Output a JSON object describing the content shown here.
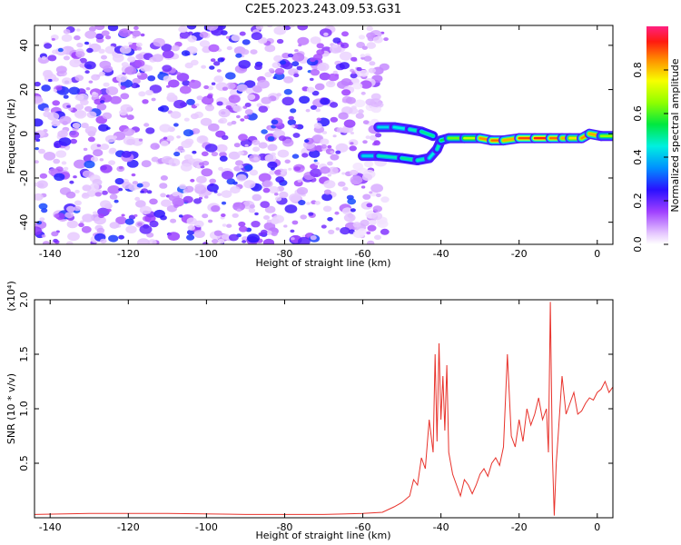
{
  "figure_title": "C2E5.2023.243.09.53.G31",
  "chart_data": [
    {
      "type": "heatmap",
      "title": "C2E5.2023.243.09.53.G31",
      "xlabel": "Height of straight line (km)",
      "ylabel": "Frequency (Hz)",
      "xlim": [
        -144,
        4
      ],
      "ylim": [
        -50,
        49
      ],
      "x_ticks": [
        -140,
        -120,
        -100,
        -80,
        -60,
        -40,
        -20,
        0
      ],
      "y_ticks": [
        -40,
        -20,
        0,
        20,
        40
      ],
      "noise_region_x": [
        -144,
        -54
      ],
      "signal_track": [
        {
          "x": -60,
          "y": -10,
          "amp": 0.4
        },
        {
          "x": -56,
          "y": -10,
          "amp": 0.45
        },
        {
          "x": -50,
          "y": -11,
          "amp": 0.5
        },
        {
          "x": -46,
          "y": -12,
          "amp": 0.5
        },
        {
          "x": -43,
          "y": -11,
          "amp": 0.45
        },
        {
          "x": -41,
          "y": -7,
          "amp": 0.45
        },
        {
          "x": -40,
          "y": -3,
          "amp": 0.5
        },
        {
          "x": -38,
          "y": -2,
          "amp": 0.6
        },
        {
          "x": -34,
          "y": -2,
          "amp": 0.65
        },
        {
          "x": -30,
          "y": -2,
          "amp": 0.75
        },
        {
          "x": -27,
          "y": -3,
          "amp": 0.95
        },
        {
          "x": -24,
          "y": -3,
          "amp": 0.8
        },
        {
          "x": -20,
          "y": -2,
          "amp": 0.85
        },
        {
          "x": -16,
          "y": -2,
          "amp": 0.95
        },
        {
          "x": -12,
          "y": -2,
          "amp": 0.9
        },
        {
          "x": -9,
          "y": -2,
          "amp": 0.85
        },
        {
          "x": -7,
          "y": -2,
          "amp": 0.8
        },
        {
          "x": -4,
          "y": -2,
          "amp": 0.75
        },
        {
          "x": -2,
          "y": 0,
          "amp": 0.95
        },
        {
          "x": 1,
          "y": -1,
          "amp": 0.7
        },
        {
          "x": 4,
          "y": -1,
          "amp": 0.6
        }
      ],
      "upper_branch": [
        {
          "x": -56,
          "y": 3,
          "amp": 0.4
        },
        {
          "x": -52,
          "y": 3,
          "amp": 0.45
        },
        {
          "x": -48,
          "y": 2,
          "amp": 0.45
        },
        {
          "x": -45,
          "y": 1,
          "amp": 0.5
        },
        {
          "x": -42,
          "y": -1,
          "amp": 0.5
        }
      ],
      "colorbar": {
        "label": "Normalized spectral amplitude",
        "range": [
          0,
          1
        ],
        "ticks": [
          "0.0",
          "0.2",
          "0.4",
          "0.6",
          "0.8"
        ]
      }
    },
    {
      "type": "line",
      "xlabel": "Height of straight line (km)",
      "ylabel": "SNR (10 * v/v)",
      "y_multiplier": "(x10⁴)",
      "xlim": [
        -144,
        4
      ],
      "ylim": [
        0,
        2.0
      ],
      "x_ticks": [
        -140,
        -120,
        -100,
        -80,
        -60,
        -40,
        -20,
        0
      ],
      "y_ticks": [
        "0.5",
        "1.0",
        "1.5",
        "2.0"
      ],
      "series_color": "#e8322b",
      "series": [
        {
          "x": [
            -144,
            -130,
            -110,
            -90,
            -70,
            -60,
            -55,
            -52,
            -50,
            -48,
            -47,
            -46,
            -45,
            -44,
            -43,
            -42,
            -41.5,
            -41,
            -40.5,
            -40,
            -39.5,
            -39,
            -38.5,
            -38,
            -37,
            -36,
            -35,
            -34,
            -33,
            -32,
            -31,
            -30,
            -29,
            -28,
            -27,
            -26,
            -25,
            -24,
            -23,
            -22,
            -21,
            -20,
            -19,
            -18,
            -17,
            -16,
            -15,
            -14,
            -13,
            -12.5,
            -12,
            -11.5,
            -11,
            -10.5,
            -10,
            -9,
            -8,
            -7,
            -6,
            -5,
            -4,
            -3,
            -2,
            -1,
            0,
            1,
            2,
            3,
            4
          ],
          "y": [
            0.03,
            0.04,
            0.04,
            0.03,
            0.03,
            0.04,
            0.05,
            0.1,
            0.14,
            0.2,
            0.35,
            0.3,
            0.55,
            0.45,
            0.9,
            0.6,
            1.5,
            0.7,
            1.6,
            0.9,
            1.3,
            0.8,
            1.4,
            0.6,
            0.4,
            0.3,
            0.2,
            0.35,
            0.3,
            0.22,
            0.3,
            0.4,
            0.45,
            0.38,
            0.5,
            0.55,
            0.48,
            0.65,
            1.5,
            0.75,
            0.65,
            0.9,
            0.7,
            1.0,
            0.85,
            0.95,
            1.1,
            0.9,
            1.0,
            0.6,
            1.98,
            0.6,
            0.02,
            0.5,
            0.75,
            1.3,
            0.95,
            1.05,
            1.15,
            0.95,
            0.98,
            1.05,
            1.1,
            1.08,
            1.15,
            1.18,
            1.25,
            1.15,
            1.2
          ]
        }
      ]
    }
  ]
}
